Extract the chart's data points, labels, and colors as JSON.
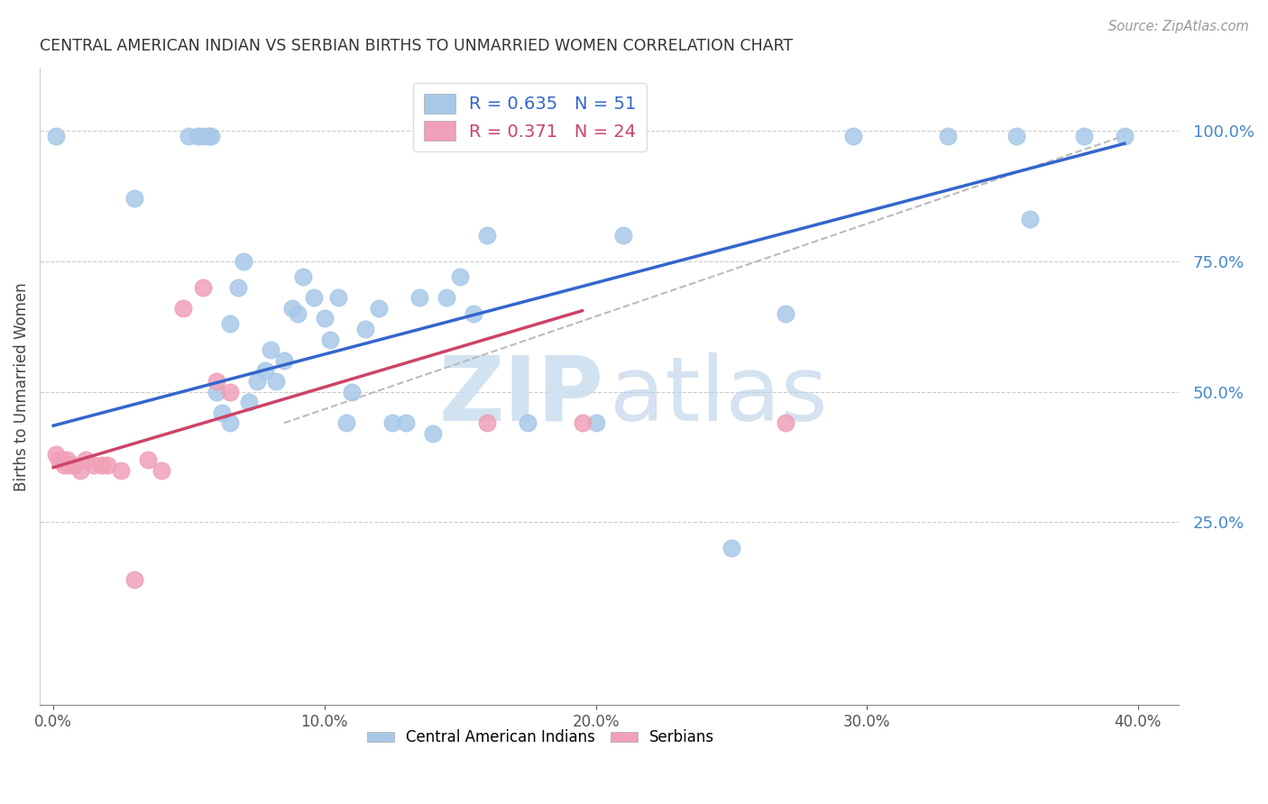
{
  "title": "CENTRAL AMERICAN INDIAN VS SERBIAN BIRTHS TO UNMARRIED WOMEN CORRELATION CHART",
  "source": "Source: ZipAtlas.com",
  "xlabel_vals": [
    0.0,
    0.1,
    0.2,
    0.3,
    0.4
  ],
  "ylabel": "Births to Unmarried Women",
  "ylabel_vals_right": [
    1.0,
    0.75,
    0.5,
    0.25
  ],
  "blue_color": "#a8c8e8",
  "pink_color": "#f0a0b8",
  "line_blue": "#3366cc",
  "line_pink": "#cc4466",
  "line_dashed_color": "#bbbbbb",
  "blue_scatter_x": [
    0.001,
    0.03,
    0.05,
    0.053,
    0.055,
    0.057,
    0.058,
    0.06,
    0.062,
    0.065,
    0.065,
    0.068,
    0.07,
    0.072,
    0.075,
    0.078,
    0.08,
    0.082,
    0.085,
    0.088,
    0.09,
    0.092,
    0.096,
    0.1,
    0.102,
    0.105,
    0.108,
    0.11,
    0.115,
    0.12,
    0.125,
    0.13,
    0.135,
    0.14,
    0.145,
    0.15,
    0.155,
    0.16,
    0.175,
    0.2,
    0.21,
    0.25,
    0.27,
    0.295,
    0.33,
    0.355,
    0.36,
    0.38,
    0.395
  ],
  "blue_scatter_y": [
    0.99,
    0.87,
    0.99,
    0.99,
    0.99,
    0.99,
    0.99,
    0.5,
    0.46,
    0.44,
    0.63,
    0.7,
    0.75,
    0.48,
    0.52,
    0.54,
    0.58,
    0.52,
    0.56,
    0.66,
    0.65,
    0.72,
    0.68,
    0.64,
    0.6,
    0.68,
    0.44,
    0.5,
    0.62,
    0.66,
    0.44,
    0.44,
    0.68,
    0.42,
    0.68,
    0.72,
    0.65,
    0.8,
    0.44,
    0.44,
    0.8,
    0.2,
    0.65,
    0.99,
    0.99,
    0.99,
    0.83,
    0.99,
    0.99
  ],
  "pink_scatter_x": [
    0.001,
    0.002,
    0.003,
    0.004,
    0.005,
    0.006,
    0.008,
    0.01,
    0.012,
    0.015,
    0.018,
    0.02,
    0.025,
    0.03,
    0.035,
    0.04,
    0.048,
    0.055,
    0.06,
    0.065,
    0.16,
    0.195,
    0.27
  ],
  "pink_scatter_y": [
    0.38,
    0.37,
    0.37,
    0.36,
    0.37,
    0.36,
    0.36,
    0.35,
    0.37,
    0.36,
    0.36,
    0.36,
    0.35,
    0.14,
    0.37,
    0.35,
    0.66,
    0.7,
    0.52,
    0.5,
    0.44,
    0.44,
    0.44
  ],
  "xlim": [
    -0.005,
    0.415
  ],
  "ylim": [
    -0.1,
    1.12
  ],
  "blue_line_x": [
    0.0,
    0.395
  ],
  "blue_line_y": [
    0.435,
    0.975
  ],
  "pink_line_x": [
    0.0,
    0.195
  ],
  "pink_line_y": [
    0.355,
    0.655
  ],
  "dash_line_x": [
    0.085,
    0.395
  ],
  "dash_line_y": [
    0.44,
    0.99
  ]
}
